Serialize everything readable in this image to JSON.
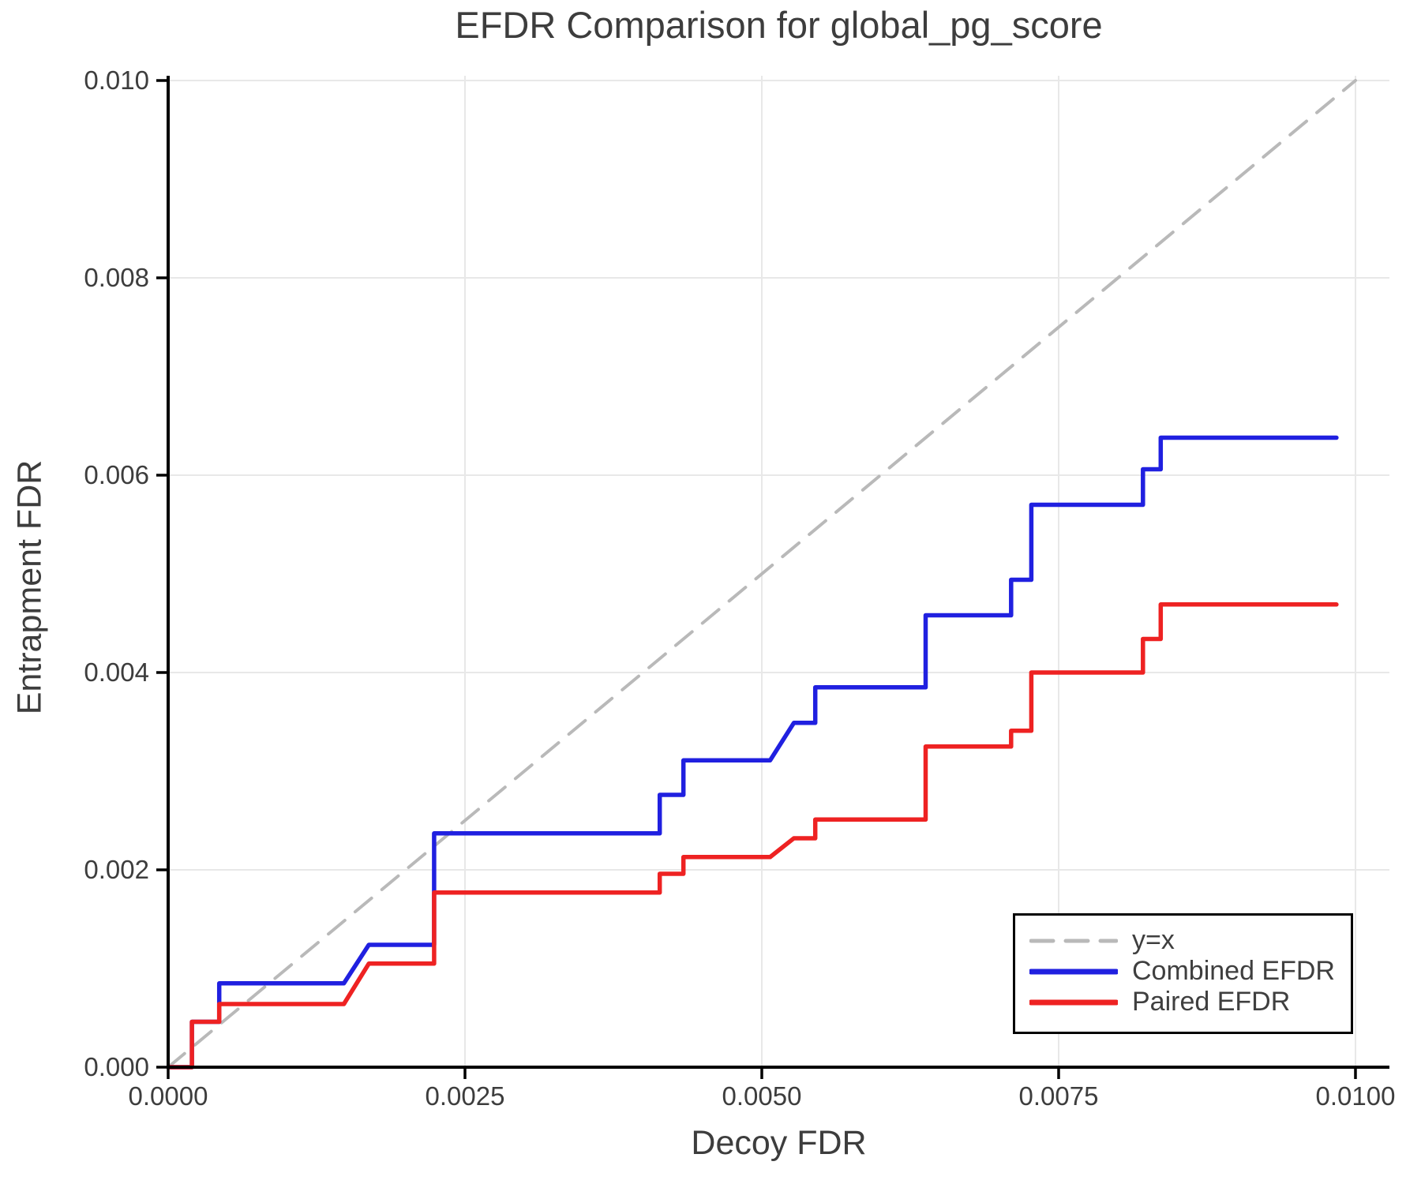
{
  "title": "EFDR Comparison for global_pg_score",
  "axes": {
    "xlabel": "Decoy FDR",
    "ylabel": "Entrapment FDR"
  },
  "legend": {
    "position": "lower right",
    "entries": [
      {
        "label": "y=x",
        "color": "#b9b9b9",
        "dashed": true
      },
      {
        "label": "Combined EFDR",
        "color": "#2020e0",
        "dashed": false
      },
      {
        "label": "Paired EFDR",
        "color": "#ee2222",
        "dashed": false
      }
    ]
  },
  "colors": {
    "background": "#ffffff",
    "grid": "#e8e8e8",
    "spine": "#000000",
    "text": "#3d3d3d",
    "identity_line": "#b9b9b9",
    "combined": "#2020e0",
    "paired": "#ee2222"
  },
  "chart_data": {
    "type": "line",
    "title": "EFDR Comparison for global_pg_score",
    "xlabel": "Decoy FDR",
    "ylabel": "Entrapment FDR",
    "grid": true,
    "legend_position": "lower right",
    "xlim": [
      0,
      0.010286
    ],
    "ylim": [
      0,
      0.010048
    ],
    "xticks": {
      "values": [
        0,
        0.0025,
        0.005,
        0.0075,
        0.01
      ],
      "labels": [
        "0.0000",
        "0.0025",
        "0.0050",
        "0.0075",
        "0.0100"
      ]
    },
    "yticks": {
      "values": [
        0,
        0.002,
        0.004,
        0.006,
        0.008,
        0.01
      ],
      "labels": [
        "0.000",
        "0.002",
        "0.004",
        "0.006",
        "0.008",
        "0.010"
      ]
    },
    "series": [
      {
        "name": "y=x",
        "color": "#b9b9b9",
        "width": 4,
        "dash": "27 17",
        "x": [
          0,
          0.01
        ],
        "y": [
          0,
          0.01
        ]
      },
      {
        "name": "Combined EFDR",
        "color": "#2020e0",
        "width": 5.5,
        "dash": null,
        "x": [
          0,
          0.0002,
          0.0002,
          0.00043,
          0.00043,
          0.00148,
          0.00169,
          0.00224,
          0.00224,
          0.00414,
          0.00414,
          0.00434,
          0.00434,
          0.00507,
          0.00527,
          0.00545,
          0.00545,
          0.00638,
          0.00638,
          0.0071,
          0.0071,
          0.00727,
          0.00727,
          0.00821,
          0.00821,
          0.00836,
          0.00836,
          0.00984
        ],
        "y": [
          0,
          0,
          0.00046,
          0.00046,
          0.00085,
          0.00085,
          0.00124,
          0.00124,
          0.00237,
          0.00237,
          0.00276,
          0.00276,
          0.00311,
          0.00311,
          0.00349,
          0.00349,
          0.00385,
          0.00385,
          0.00458,
          0.00458,
          0.00494,
          0.00494,
          0.0057,
          0.0057,
          0.00606,
          0.00606,
          0.00638,
          0.00638
        ]
      },
      {
        "name": "Paired EFDR",
        "color": "#ee2222",
        "width": 5.5,
        "dash": null,
        "x": [
          0,
          0.0002,
          0.0002,
          0.00043,
          0.00043,
          0.00148,
          0.00169,
          0.00224,
          0.00224,
          0.00414,
          0.00414,
          0.00434,
          0.00434,
          0.00507,
          0.00527,
          0.00545,
          0.00545,
          0.00638,
          0.00638,
          0.0071,
          0.0071,
          0.00727,
          0.00727,
          0.00821,
          0.00821,
          0.00836,
          0.00836,
          0.00984
        ],
        "y": [
          0,
          0,
          0.00046,
          0.00046,
          0.00064,
          0.00064,
          0.00105,
          0.00105,
          0.00177,
          0.00177,
          0.00196,
          0.00196,
          0.00213,
          0.00213,
          0.00232,
          0.00232,
          0.00251,
          0.00251,
          0.00325,
          0.00325,
          0.00341,
          0.00341,
          0.004,
          0.004,
          0.00434,
          0.00434,
          0.00469,
          0.00469
        ]
      }
    ]
  }
}
